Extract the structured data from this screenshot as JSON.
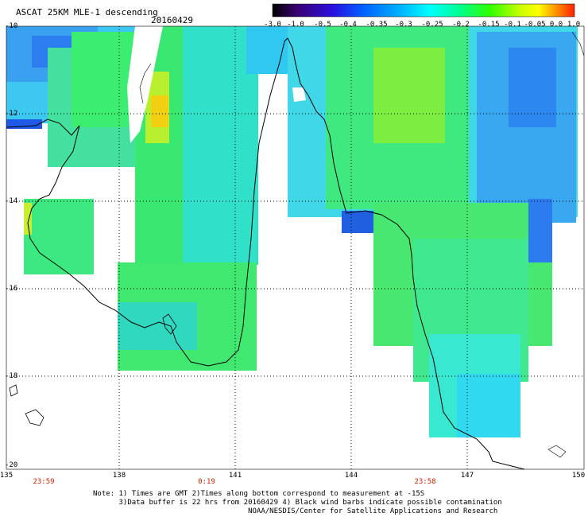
{
  "header": {
    "title": "ASCAT 25KM MLE-1 descending",
    "date": "20160429"
  },
  "colorbar": {
    "ticks": [
      "-3.0",
      "-1.0",
      "-0.5",
      "-0.4",
      "-0.35",
      "-0.3",
      "-0.25",
      "-0.2",
      "-0.15",
      "-0.1",
      "-0.05",
      "0.0",
      "1.0"
    ],
    "colors": [
      "#2a0050",
      "#4b00a0",
      "#3010e0",
      "#0040ff",
      "#0080ff",
      "#00c0ff",
      "#00ffff",
      "#00ff80",
      "#40ff00",
      "#c0ff00",
      "#ffff00",
      "#ffa000",
      "#ff3000"
    ]
  },
  "axes": {
    "lat_labels": [
      "-10",
      "-12",
      "-14",
      "-16",
      "-18",
      "-20"
    ],
    "lon_labels": [
      "135",
      "138",
      "141",
      "144",
      "147",
      "150"
    ],
    "time_labels": [
      "23:59",
      "0:19",
      "23:58"
    ]
  },
  "notes": {
    "line1": "Note: 1) Times are GMT 2)Times along bottom correspond to measurement at -15S",
    "line2": "      3)Data buffer is 22 hrs from 20160429 4) Black wind barbs indicate possible contamination",
    "line3": "                                    NOAA/NESDIS/Center for Satellite Applications and Research"
  }
}
